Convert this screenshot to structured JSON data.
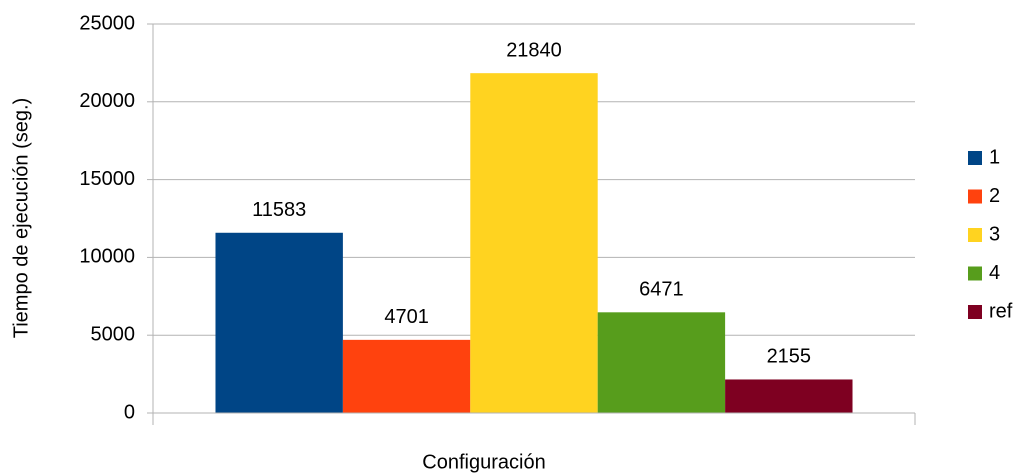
{
  "chart_data": {
    "type": "bar",
    "x_label": "Configuración",
    "y_label": "Tiempo de ejecución (seg.)",
    "categories": [
      null
    ],
    "series": [
      {
        "name": "1",
        "color": "#004586",
        "values": [
          11583
        ]
      },
      {
        "name": "2",
        "color": "#ff420e",
        "values": [
          4701
        ]
      },
      {
        "name": "3",
        "color": "#ffd320",
        "values": [
          21840
        ]
      },
      {
        "name": "4",
        "color": "#579d1c",
        "values": [
          6471
        ]
      },
      {
        "name": "ref",
        "color": "#7e0021",
        "values": [
          2155
        ]
      }
    ],
    "ylim": [
      0,
      25000
    ],
    "yticks": [
      0,
      5000,
      10000,
      15000,
      20000,
      25000
    ],
    "grid": true,
    "legend": "right",
    "data_labels": true
  }
}
